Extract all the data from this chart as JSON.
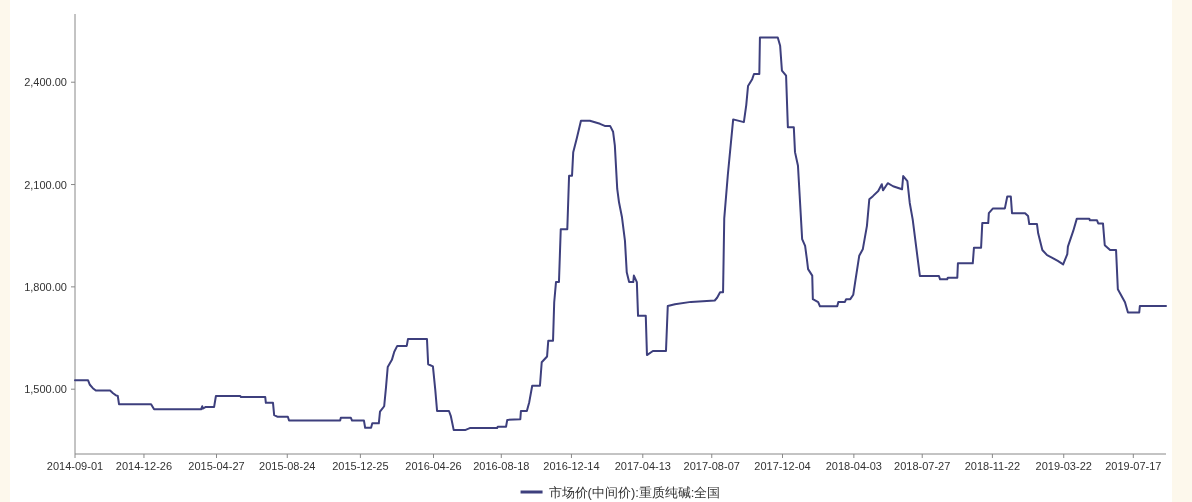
{
  "chart_data": {
    "type": "line",
    "x": [
      "2014-09-01",
      "2014-09-23",
      "2014-09-26",
      "2014-10-01",
      "2014-10-06",
      "2014-10-30",
      "2014-11-04",
      "2014-11-09",
      "2014-11-12",
      "2014-11-14",
      "2015-01-07",
      "2015-01-12",
      "2015-04-01",
      "2015-04-03",
      "2015-04-04",
      "2015-04-09",
      "2015-04-23",
      "2015-04-26",
      "2015-06-06",
      "2015-06-07",
      "2015-07-18",
      "2015-07-19",
      "2015-07-31",
      "2015-08-02",
      "2015-08-08",
      "2015-08-25",
      "2015-08-27",
      "2015-11-21",
      "2015-11-22",
      "2015-12-09",
      "2015-12-11",
      "2015-12-31",
      "2016-01-02",
      "2016-01-12",
      "2016-01-14",
      "2016-01-25",
      "2016-01-27",
      "2016-02-03",
      "2016-02-06",
      "2016-02-09",
      "2016-02-16",
      "2016-02-20",
      "2016-02-25",
      "2016-03-12",
      "2016-03-14",
      "2016-04-15",
      "2016-04-17",
      "2016-04-25",
      "2016-04-29",
      "2016-05-02",
      "2016-05-22",
      "2016-05-25",
      "2016-05-30",
      "2016-06-18",
      "2016-06-26",
      "2016-08-11",
      "2016-08-12",
      "2016-08-26",
      "2016-08-28",
      "2016-09-19",
      "2016-09-20",
      "2016-09-30",
      "2016-10-04",
      "2016-10-09",
      "2016-10-22",
      "2016-10-25",
      "2016-11-03",
      "2016-11-05",
      "2016-11-13",
      "2016-11-15",
      "2016-11-18",
      "2016-11-23",
      "2016-11-26",
      "2016-12-07",
      "2016-12-10",
      "2016-12-15",
      "2016-12-17",
      "2016-12-23",
      "2016-12-30",
      "2017-01-14",
      "2017-01-31",
      "2017-02-08",
      "2017-02-17",
      "2017-02-22",
      "2017-02-25",
      "2017-03-01",
      "2017-03-04",
      "2017-03-09",
      "2017-03-14",
      "2017-03-17",
      "2017-03-21",
      "2017-03-28",
      "2017-03-29",
      "2017-04-03",
      "2017-04-05",
      "2017-04-18",
      "2017-04-20",
      "2017-04-30",
      "2017-05-22",
      "2017-05-25",
      "2017-06-06",
      "2017-07-03",
      "2017-08-12",
      "2017-08-16",
      "2017-08-21",
      "2017-08-26",
      "2017-08-28",
      "2017-09-03",
      "2017-09-12",
      "2017-09-30",
      "2017-10-04",
      "2017-10-07",
      "2017-10-14",
      "2017-10-17",
      "2017-10-26",
      "2017-10-27",
      "2017-11-26",
      "2017-11-30",
      "2017-12-03",
      "2017-12-10",
      "2017-12-13",
      "2017-12-23",
      "2017-12-25",
      "2017-12-30",
      "2018-01-06",
      "2018-01-11",
      "2018-01-14",
      "2018-01-16",
      "2018-01-23",
      "2018-01-24",
      "2018-02-02",
      "2018-02-05",
      "2018-03-06",
      "2018-03-08",
      "2018-03-19",
      "2018-03-21",
      "2018-03-28",
      "2018-04-02",
      "2018-04-05",
      "2018-04-12",
      "2018-04-18",
      "2018-04-25",
      "2018-04-29",
      "2018-05-05",
      "2018-05-14",
      "2018-05-20",
      "2018-05-22",
      "2018-05-30",
      "2018-06-08",
      "2018-06-23",
      "2018-06-25",
      "2018-07-02",
      "2018-07-06",
      "2018-07-11",
      "2018-07-18",
      "2018-07-23",
      "2018-08-24",
      "2018-08-26",
      "2018-09-07",
      "2018-09-08",
      "2018-09-24",
      "2018-09-25",
      "2018-10-20",
      "2018-10-22",
      "2018-11-03",
      "2018-11-05",
      "2018-11-15",
      "2018-11-16",
      "2018-11-23",
      "2018-12-13",
      "2018-12-17",
      "2018-12-23",
      "2018-12-25",
      "2019-01-16",
      "2019-01-21",
      "2019-01-23",
      "2019-02-05",
      "2019-02-07",
      "2019-02-14",
      "2019-02-22",
      "2019-03-02",
      "2019-03-12",
      "2019-03-21",
      "2019-03-28",
      "2019-03-29",
      "2019-04-07",
      "2019-04-13",
      "2019-05-04",
      "2019-05-05",
      "2019-05-17",
      "2019-05-19",
      "2019-05-27",
      "2019-05-30",
      "2019-06-08",
      "2019-06-18",
      "2019-06-21",
      "2019-07-03",
      "2019-07-08",
      "2019-07-27",
      "2019-07-28",
      "2019-09-10"
    ],
    "series": [
      {
        "name": "市场价(中间价):重质纯碱:全国",
        "color": "#3d3f7d",
        "values": [
          1526,
          1526,
          1513,
          1503,
          1496,
          1496,
          1488,
          1482,
          1480,
          1456,
          1456,
          1441,
          1441,
          1450,
          1443,
          1448,
          1448,
          1480,
          1480,
          1477,
          1477,
          1460,
          1460,
          1424,
          1419,
          1419,
          1408,
          1408,
          1416,
          1416,
          1408,
          1408,
          1387,
          1387,
          1400,
          1400,
          1434,
          1450,
          1504,
          1565,
          1586,
          1610,
          1627,
          1627,
          1647,
          1647,
          1573,
          1567,
          1497,
          1436,
          1436,
          1422,
          1380,
          1380,
          1386,
          1386,
          1390,
          1390,
          1410,
          1412,
          1436,
          1436,
          1462,
          1510,
          1510,
          1579,
          1596,
          1642,
          1642,
          1755,
          1814,
          1814,
          1969,
          1969,
          2126,
          2126,
          2195,
          2236,
          2287,
          2287,
          2278,
          2272,
          2272,
          2255,
          2214,
          2087,
          2048,
          2004,
          1935,
          1843,
          1814,
          1814,
          1833,
          1814,
          1715,
          1715,
          1600,
          1612,
          1612,
          1744,
          1749,
          1756,
          1760,
          1768,
          1784,
          1784,
          2001,
          2128,
          2291,
          2283,
          2333,
          2389,
          2409,
          2424,
          2424,
          2531,
          2531,
          2507,
          2434,
          2419,
          2268,
          2268,
          2195,
          2155,
          1940,
          1920,
          1881,
          1852,
          1833,
          1764,
          1755,
          1743,
          1743,
          1756,
          1756,
          1764,
          1764,
          1777,
          1812,
          1891,
          1910,
          1979,
          2057,
          2066,
          2081,
          2101,
          2083,
          2104,
          2095,
          2086,
          2125,
          2110,
          2046,
          1997,
          1901,
          1832,
          1832,
          1822,
          1822,
          1827,
          1827,
          1869,
          1869,
          1915,
          1915,
          1987,
          1987,
          2016,
          2030,
          2030,
          2065,
          2065,
          2016,
          2016,
          2008,
          1984,
          1984,
          1957,
          1908,
          1893,
          1886,
          1876,
          1866,
          1896,
          1918,
          1964,
          2000,
          2000,
          1995,
          1995,
          1986,
          1986,
          1922,
          1908,
          1908,
          1793,
          1755,
          1725,
          1725,
          1744,
          1744
        ]
      }
    ],
    "xlim": [
      "2014-09-01",
      "2019-09-10"
    ],
    "ylim": [
      1310,
      2600
    ],
    "xticks": [
      {
        "value": "2014-09-01",
        "label": "2014-09-01"
      },
      {
        "value": "2014-12-26",
        "label": "2014-12-26"
      },
      {
        "value": "2015-04-27",
        "label": "2015-04-27"
      },
      {
        "value": "2015-08-24",
        "label": "2015-08-24"
      },
      {
        "value": "2015-12-25",
        "label": "2015-12-25"
      },
      {
        "value": "2016-04-26",
        "label": "2016-04-26"
      },
      {
        "value": "2016-08-18",
        "label": "2016-08-18"
      },
      {
        "value": "2016-12-14",
        "label": "2016-12-14"
      },
      {
        "value": "2017-04-13",
        "label": "2017-04-13"
      },
      {
        "value": "2017-08-07",
        "label": "2017-08-07"
      },
      {
        "value": "2017-12-04",
        "label": "2017-12-04"
      },
      {
        "value": "2018-04-03",
        "label": "2018-04-03"
      },
      {
        "value": "2018-07-27",
        "label": "2018-07-27"
      },
      {
        "value": "2018-11-22",
        "label": "2018-11-22"
      },
      {
        "value": "2019-03-22",
        "label": "2019-03-22"
      },
      {
        "value": "2019-07-17",
        "label": "2019-07-17"
      }
    ],
    "yticks": [
      {
        "value": 1500,
        "label": "1,500.00"
      },
      {
        "value": 1800,
        "label": "1,800.00"
      },
      {
        "value": 2100,
        "label": "2,100.00"
      },
      {
        "value": 2400,
        "label": "2,400.00"
      }
    ],
    "legend": "bottom"
  }
}
